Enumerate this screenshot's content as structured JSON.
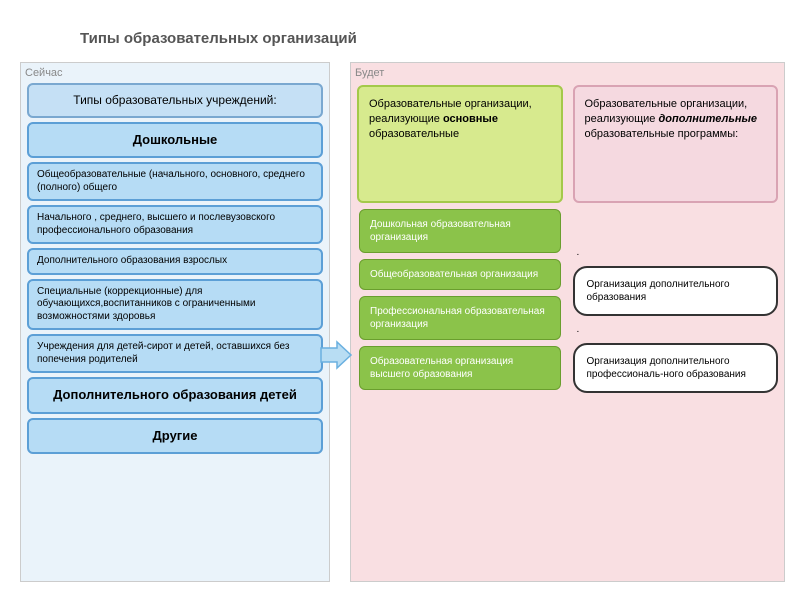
{
  "title": "Типы образовательных организаций",
  "left": {
    "label": "Сейчас",
    "header": "Типы образовательных учреждений:",
    "header_bg": "#c5e0f5",
    "header_border": "#7aa8d0",
    "items": [
      {
        "text": "Дошкольные",
        "big": true
      },
      {
        "text": "Общеобразовательные (начального, основного, среднего (полного) общего"
      },
      {
        "text": "Начального , среднего, высшего и послевузовского профессионального образования"
      },
      {
        "text": "Дополнительного образования взрослых"
      },
      {
        "text": "Специальные (коррекционные) для обучающихся,воспитанников с ограниченными возможностями здоровья"
      },
      {
        "text": "Учреждения для детей-сирот и детей, оставшихся без попечения родителей"
      },
      {
        "text": "Дополнительного образования детей",
        "big": true
      },
      {
        "text": "Другие",
        "big": true
      }
    ],
    "item_bg": "#b6dcf5",
    "item_border": "#5c9fd6",
    "panel_bg": "#eaf3fa"
  },
  "right": {
    "label": "Будет",
    "panel_bg": "#f9dfe2",
    "col1": {
      "header_pre": "Образовательные организации, реализующие ",
      "header_strong": "основные",
      "header_post": " образовательные",
      "header_bg": "#d7ea8e",
      "header_border": "#a4c94a",
      "items": [
        "Дошкольная образовательная организация",
        "Общеобразовательная организация",
        "Профессиональная образовательная организация",
        "Образовательная организация высшего образования"
      ],
      "item_bg": "#8bc34a",
      "item_border": "#6a9e2e"
    },
    "col2": {
      "header_pre": "Образовательные организации, реализующие ",
      "header_strong": "дополнительные",
      "header_post": " образовательные программы:",
      "header_bg": "#f5d9e0",
      "header_border": "#d9a3b3",
      "bubbles": [
        "Организация дополнительного образования",
        "Организация дополнительного профессиональ-ного образования"
      ]
    }
  },
  "arrow_color": "#6ab0e0"
}
